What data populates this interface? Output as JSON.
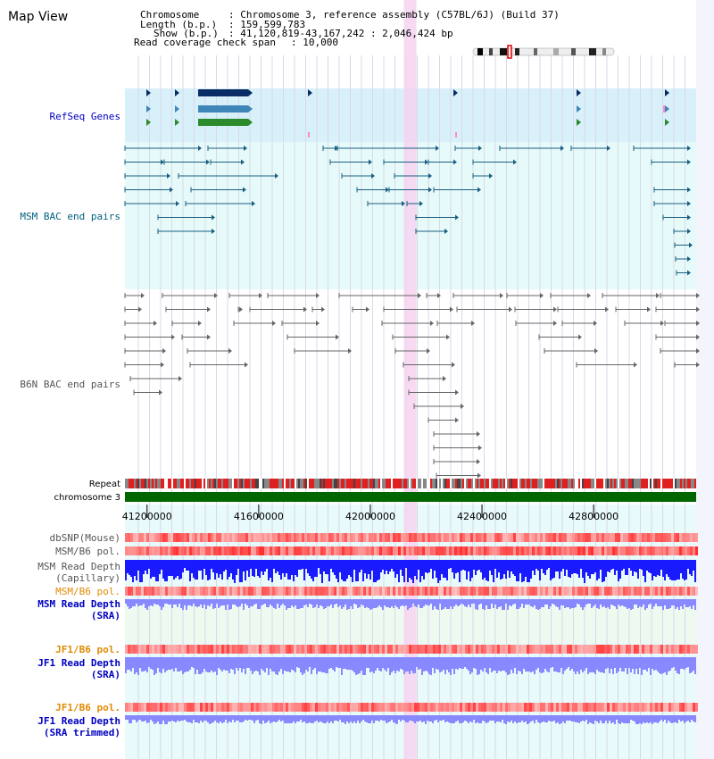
{
  "title": "Map View",
  "info": {
    "chromosome_key": "Chromosome",
    "chromosome_val": ": Chromosome 3, reference assembly (C57BL/6J) (Build 37)",
    "length_key": "Length (b.p.)",
    "length_val": ": 159,599,783",
    "show_key": "Show (b.p.)",
    "show_val": ": 41,120,819-43,167,242 : 2,046,424 bp",
    "coverage_key": "Read coverage check span",
    "coverage_val": ": 10,000"
  },
  "tracks": {
    "refseq": "RefSeq Genes",
    "msm_bac": "MSM BAC end pairs",
    "b6n_bac": "B6N BAC end pairs",
    "repeat": "Repeat",
    "chromosome": "chromosome 3",
    "dbsnp": "dbSNP(Mouse)",
    "msm_b6_pol_1": "MSM/B6 pol.",
    "msm_depth_cap_1": "MSM Read Depth",
    "msm_depth_cap_2": "(Capillary)",
    "msm_b6_pol_2": "MSM/B6 pol.",
    "msm_depth_sra_1": "MSM Read Depth",
    "msm_depth_sra_2": "(SRA)",
    "jf1_b6_pol_1": "JF1/B6 pol.",
    "jf1_depth_sra_1": "JF1 Read Depth",
    "jf1_depth_sra_2": "(SRA)",
    "jf1_b6_pol_2": "JF1/B6 pol.",
    "jf1_depth_trim_1": "JF1 Read Depth",
    "jf1_depth_trim_2": "(SRA trimmed)"
  },
  "axis_ticks": [
    {
      "label": "41200000",
      "value": 41200000
    },
    {
      "label": "41600000",
      "value": 41600000
    },
    {
      "label": "42000000",
      "value": 42000000
    },
    {
      "label": "42400000",
      "value": 42400000
    },
    {
      "label": "42800000",
      "value": 42800000
    }
  ],
  "view_range": {
    "start": 41120819,
    "end": 43167242
  },
  "highlight_range": {
    "start": 42120000,
    "end": 42165000
  },
  "colors": {
    "refseq_bg": "#d8f0fa",
    "msm_bg": "#e6fafa",
    "b6n_bg": "#ffffff",
    "highlight": "#f6d4f0",
    "gene_dark": "#0a2c66",
    "gene_mid": "#3f86b8",
    "gene_green": "#2b8a2b",
    "msm_line": "#1a5f80",
    "b6n_line": "#666666",
    "chromosome_bar": "#006600",
    "depth_capillary": "#1a1aff",
    "depth_sra": "#8888ff",
    "pol_red": "#f06060",
    "lower_bg": "#e8fafa"
  }
}
